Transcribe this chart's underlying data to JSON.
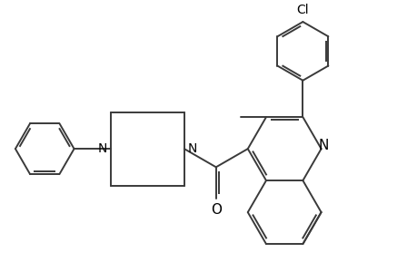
{
  "background_color": "#ffffff",
  "line_color": "#3a3a3a",
  "line_width": 1.4,
  "font_size": 10,
  "figsize": [
    4.6,
    3.0
  ],
  "dpi": 100,
  "xlim": [
    0,
    9.2
  ],
  "ylim": [
    0,
    6.0
  ]
}
